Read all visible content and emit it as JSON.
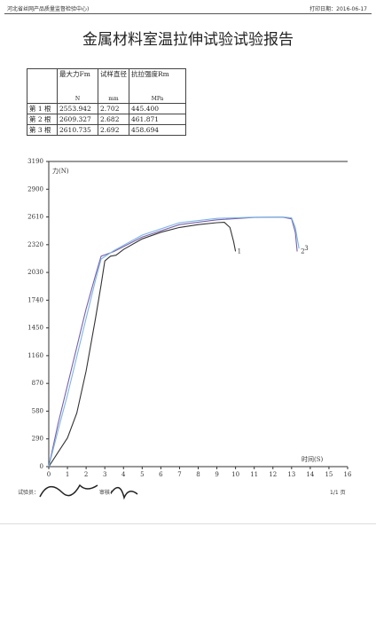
{
  "header": {
    "org": "河北省丝网产品质量监督检验中心)",
    "print_date": "打印日期：2016-06-17"
  },
  "title": "金属材料室温拉伸试验试验报告",
  "table": {
    "headers": [
      "",
      "最大力Fm",
      "试样直径",
      "抗拉强度Rm"
    ],
    "units": [
      "",
      "N",
      "mm",
      "MPa"
    ],
    "rows": [
      [
        "第 1 根",
        "2553.942",
        "2.702",
        "445.400"
      ],
      [
        "第 2 根",
        "2609.327",
        "2.682",
        "461.871"
      ],
      [
        "第 3 根",
        "2610.735",
        "2.692",
        "458.694"
      ]
    ]
  },
  "chart_data": {
    "type": "line",
    "y_label": "力(N)",
    "x_label": "时间(S)",
    "xlim": [
      0,
      16
    ],
    "ylim": [
      0,
      3190
    ],
    "xticks": [
      0,
      1,
      2,
      3,
      4,
      5,
      6,
      7,
      8,
      9,
      10,
      11,
      12,
      13,
      14,
      15,
      16
    ],
    "yticks": [
      0,
      290,
      580,
      870,
      1160,
      1450,
      1740,
      2030,
      2320,
      2610,
      2900,
      3190
    ],
    "series": [
      {
        "name": "1",
        "color": "#333333",
        "x": [
          0,
          0.5,
          1,
          1.5,
          2,
          2.5,
          2.8,
          3.0,
          3.3,
          3.6,
          4,
          5,
          6,
          7,
          8,
          9,
          9.4,
          9.7,
          9.9,
          10
        ],
        "values": [
          0,
          150,
          300,
          560,
          1000,
          1550,
          1900,
          2150,
          2200,
          2210,
          2270,
          2380,
          2450,
          2500,
          2530,
          2550,
          2554,
          2500,
          2350,
          2250
        ]
      },
      {
        "name": "2",
        "color": "#7a5fa8",
        "x": [
          0,
          0.5,
          1,
          1.5,
          2,
          2.5,
          2.8,
          3.5,
          5,
          7,
          9,
          11,
          12.5,
          13,
          13.2,
          13.3
        ],
        "values": [
          0,
          450,
          850,
          1250,
          1650,
          2000,
          2200,
          2250,
          2400,
          2530,
          2580,
          2605,
          2609,
          2590,
          2450,
          2250
        ]
      },
      {
        "name": "3",
        "color": "#7ab4e6",
        "x": [
          0,
          0.5,
          1,
          1.5,
          2,
          2.5,
          2.8,
          3.5,
          5,
          7,
          9,
          11,
          12.5,
          13,
          13.2,
          13.4
        ],
        "values": [
          0,
          380,
          750,
          1150,
          1550,
          1950,
          2170,
          2260,
          2420,
          2550,
          2595,
          2608,
          2610,
          2600,
          2500,
          2280
        ]
      }
    ]
  },
  "footer": {
    "tester": "试验员：",
    "reviewer": "审核：",
    "page": "1/1 页"
  }
}
